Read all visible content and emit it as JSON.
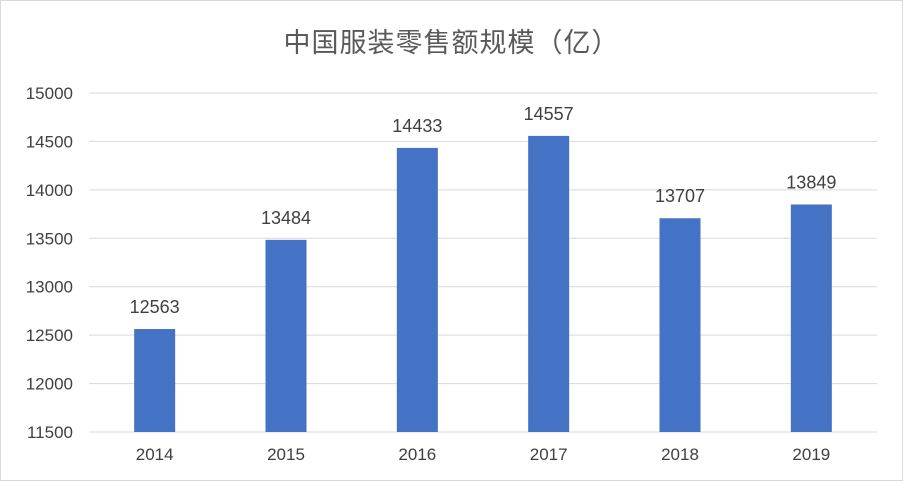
{
  "chart_data": {
    "type": "bar",
    "title": "中国服装零售额规模（亿）",
    "xlabel": "",
    "ylabel": "",
    "categories": [
      "2014",
      "2015",
      "2016",
      "2017",
      "2018",
      "2019"
    ],
    "values": [
      12563,
      13484,
      14433,
      14557,
      13707,
      13849
    ],
    "data_labels": [
      "12563",
      "13484",
      "14433",
      "14557",
      "13707",
      "13849"
    ],
    "ylim": [
      11500,
      15000
    ],
    "yticks": [
      11500,
      12000,
      12500,
      13000,
      13500,
      14000,
      14500,
      15000
    ],
    "ytick_labels": [
      "11500",
      "12000",
      "12500",
      "13000",
      "13500",
      "14000",
      "14500",
      "15000"
    ],
    "grid": true,
    "legend": "none",
    "bar_color": "#4472c4",
    "grid_color": "#d9d9d9"
  }
}
